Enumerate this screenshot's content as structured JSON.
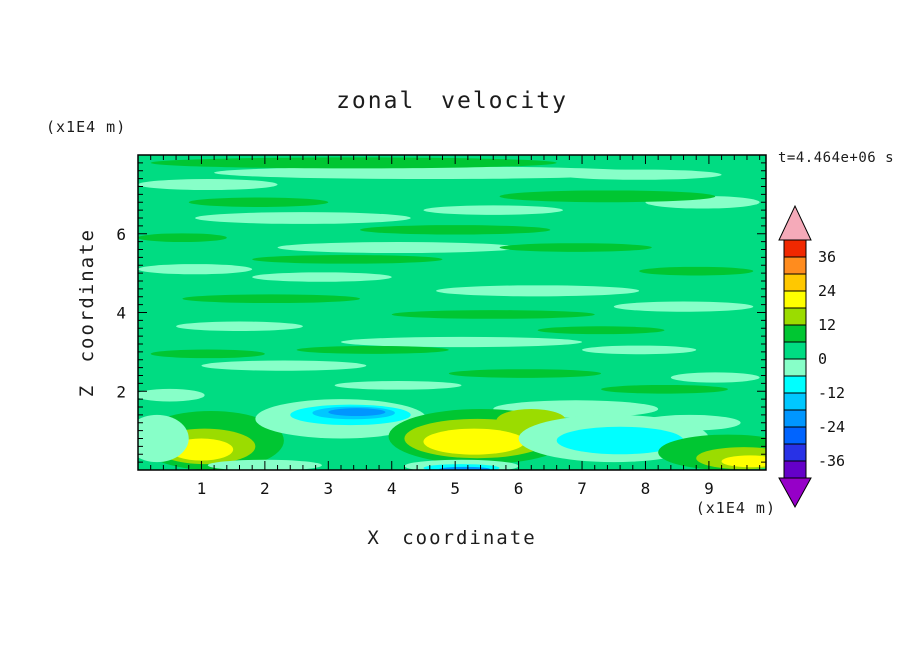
{
  "page": {
    "background": "#ffffff"
  },
  "chart_data": {
    "type": "heatmap",
    "title": "zonal velocity",
    "timestamp": "t=4.464e+06 s",
    "xlabel": "X coordinate",
    "ylabel": "Z coordinate",
    "x_unit_label": "(x1E4 m)",
    "z_unit_label": "(x1E4 m)",
    "xlim": [
      0,
      9.9
    ],
    "zlim": [
      0,
      8.0
    ],
    "x_major_ticks": [
      1,
      2,
      3,
      4,
      5,
      6,
      7,
      8,
      9
    ],
    "z_major_ticks": [
      2,
      4,
      6
    ],
    "minor_tick_step": 0.2,
    "grid": false,
    "frame_color": "#000000",
    "background_band": 0,
    "colorbar": {
      "labels": [
        36,
        24,
        12,
        0,
        -12,
        -24,
        -36
      ],
      "level_step": 6,
      "under_arrow_color": "#9600C8",
      "over_arrow_color": "#F5AAB9",
      "bands": [
        {
          "min": -42,
          "max": -36,
          "color": "#6400C8"
        },
        {
          "min": -36,
          "max": -30,
          "color": "#2832E6"
        },
        {
          "min": -30,
          "max": -24,
          "color": "#0064FF"
        },
        {
          "min": -24,
          "max": -18,
          "color": "#0096FF"
        },
        {
          "min": -18,
          "max": -12,
          "color": "#00C8FF"
        },
        {
          "min": -12,
          "max": -6,
          "color": "#00FFFF"
        },
        {
          "min": -6,
          "max": 0,
          "color": "#87FFC8"
        },
        {
          "min": 0,
          "max": 6,
          "color": "#00DC82"
        },
        {
          "min": 6,
          "max": 12,
          "color": "#00C632"
        },
        {
          "min": 12,
          "max": 18,
          "color": "#9BDC00"
        },
        {
          "min": 18,
          "max": 24,
          "color": "#FFFF00"
        },
        {
          "min": 24,
          "max": 30,
          "color": "#FFC800"
        },
        {
          "min": 30,
          "max": 36,
          "color": "#FF8C1E"
        },
        {
          "min": 36,
          "max": 42,
          "color": "#F02800"
        }
      ]
    },
    "features": [
      {
        "x": 4.6,
        "z": 7.55,
        "rx": 3.4,
        "rz": 0.16,
        "band": -6
      },
      {
        "x": 1.1,
        "z": 7.25,
        "rx": 1.1,
        "rz": 0.14,
        "band": -6
      },
      {
        "x": 7.9,
        "z": 7.5,
        "rx": 1.3,
        "rz": 0.13,
        "band": -6
      },
      {
        "x": 2.6,
        "z": 6.4,
        "rx": 1.7,
        "rz": 0.15,
        "band": -6
      },
      {
        "x": 5.6,
        "z": 6.6,
        "rx": 1.1,
        "rz": 0.12,
        "band": -6
      },
      {
        "x": 8.9,
        "z": 6.8,
        "rx": 0.9,
        "rz": 0.16,
        "band": -6
      },
      {
        "x": 4.1,
        "z": 5.65,
        "rx": 1.9,
        "rz": 0.14,
        "band": -6
      },
      {
        "x": 0.9,
        "z": 5.1,
        "rx": 0.9,
        "rz": 0.13,
        "band": -6
      },
      {
        "x": 2.9,
        "z": 4.9,
        "rx": 1.1,
        "rz": 0.12,
        "band": -6
      },
      {
        "x": 6.3,
        "z": 4.55,
        "rx": 1.6,
        "rz": 0.14,
        "band": -6
      },
      {
        "x": 8.6,
        "z": 4.15,
        "rx": 1.1,
        "rz": 0.13,
        "band": -6
      },
      {
        "x": 1.6,
        "z": 3.65,
        "rx": 1.0,
        "rz": 0.12,
        "band": -6
      },
      {
        "x": 5.1,
        "z": 3.25,
        "rx": 1.9,
        "rz": 0.13,
        "band": -6
      },
      {
        "x": 7.9,
        "z": 3.05,
        "rx": 0.9,
        "rz": 0.11,
        "band": -6
      },
      {
        "x": 2.3,
        "z": 2.65,
        "rx": 1.3,
        "rz": 0.13,
        "band": -6
      },
      {
        "x": 4.1,
        "z": 2.15,
        "rx": 1.0,
        "rz": 0.11,
        "band": -6
      },
      {
        "x": 9.1,
        "z": 2.35,
        "rx": 0.7,
        "rz": 0.13,
        "band": -6
      },
      {
        "x": 0.5,
        "z": 1.9,
        "rx": 0.55,
        "rz": 0.16,
        "band": -6
      },
      {
        "x": 6.9,
        "z": 1.55,
        "rx": 1.3,
        "rz": 0.22,
        "band": -6
      },
      {
        "x": 8.7,
        "z": 1.2,
        "rx": 0.8,
        "rz": 0.2,
        "band": -6
      },
      {
        "x": 3.4,
        "z": 7.8,
        "rx": 3.2,
        "rz": 0.14,
        "band": 6
      },
      {
        "x": 7.4,
        "z": 6.95,
        "rx": 1.7,
        "rz": 0.15,
        "band": 6
      },
      {
        "x": 1.9,
        "z": 6.8,
        "rx": 1.1,
        "rz": 0.12,
        "band": 6
      },
      {
        "x": 5.0,
        "z": 6.1,
        "rx": 1.5,
        "rz": 0.12,
        "band": 6
      },
      {
        "x": 0.7,
        "z": 5.9,
        "rx": 0.7,
        "rz": 0.11,
        "band": 6
      },
      {
        "x": 3.3,
        "z": 5.35,
        "rx": 1.5,
        "rz": 0.11,
        "band": 6
      },
      {
        "x": 6.9,
        "z": 5.65,
        "rx": 1.2,
        "rz": 0.11,
        "band": 6
      },
      {
        "x": 8.8,
        "z": 5.05,
        "rx": 0.9,
        "rz": 0.11,
        "band": 6
      },
      {
        "x": 2.1,
        "z": 4.35,
        "rx": 1.4,
        "rz": 0.11,
        "band": 6
      },
      {
        "x": 5.6,
        "z": 3.95,
        "rx": 1.6,
        "rz": 0.11,
        "band": 6
      },
      {
        "x": 7.3,
        "z": 3.55,
        "rx": 1.0,
        "rz": 0.1,
        "band": 6
      },
      {
        "x": 1.1,
        "z": 2.95,
        "rx": 0.9,
        "rz": 0.11,
        "band": 6
      },
      {
        "x": 3.7,
        "z": 3.05,
        "rx": 1.2,
        "rz": 0.1,
        "band": 6
      },
      {
        "x": 6.1,
        "z": 2.45,
        "rx": 1.2,
        "rz": 0.11,
        "band": 6
      },
      {
        "x": 8.3,
        "z": 2.05,
        "rx": 1.0,
        "rz": 0.11,
        "band": 6
      },
      {
        "x": 1.15,
        "z": 0.75,
        "rx": 1.15,
        "rz": 0.75,
        "band": 6
      },
      {
        "x": 1.05,
        "z": 0.6,
        "rx": 0.8,
        "rz": 0.45,
        "band": 12
      },
      {
        "x": 1.0,
        "z": 0.52,
        "rx": 0.5,
        "rz": 0.28,
        "band": 18
      },
      {
        "x": 0.3,
        "z": 0.8,
        "rx": 0.5,
        "rz": 0.6,
        "band": -6
      },
      {
        "x": 2.0,
        "z": 0.12,
        "rx": 0.9,
        "rz": 0.14,
        "band": -6
      },
      {
        "x": 3.2,
        "z": 1.3,
        "rx": 1.35,
        "rz": 0.5,
        "band": -6
      },
      {
        "x": 3.35,
        "z": 1.4,
        "rx": 0.95,
        "rz": 0.26,
        "band": -12
      },
      {
        "x": 3.4,
        "z": 1.45,
        "rx": 0.65,
        "rz": 0.16,
        "band": -18
      },
      {
        "x": 3.45,
        "z": 1.47,
        "rx": 0.45,
        "rz": 0.1,
        "band": -24
      },
      {
        "x": 5.4,
        "z": 0.85,
        "rx": 1.45,
        "rz": 0.7,
        "band": 6
      },
      {
        "x": 5.35,
        "z": 0.8,
        "rx": 1.15,
        "rz": 0.5,
        "band": 12
      },
      {
        "x": 5.3,
        "z": 0.72,
        "rx": 0.8,
        "rz": 0.33,
        "band": 18
      },
      {
        "x": 6.2,
        "z": 1.25,
        "rx": 0.55,
        "rz": 0.3,
        "band": 12
      },
      {
        "x": 5.1,
        "z": 0.1,
        "rx": 0.9,
        "rz": 0.16,
        "band": -6
      },
      {
        "x": 5.1,
        "z": 0.05,
        "rx": 0.6,
        "rz": 0.1,
        "band": -12
      },
      {
        "x": 5.15,
        "z": 0.02,
        "rx": 0.4,
        "rz": 0.06,
        "band": -24
      },
      {
        "x": 7.5,
        "z": 0.8,
        "rx": 1.5,
        "rz": 0.6,
        "band": -6
      },
      {
        "x": 7.6,
        "z": 0.75,
        "rx": 1.0,
        "rz": 0.35,
        "band": -12
      },
      {
        "x": 9.3,
        "z": 0.45,
        "rx": 1.1,
        "rz": 0.45,
        "band": 6
      },
      {
        "x": 9.55,
        "z": 0.3,
        "rx": 0.75,
        "rz": 0.28,
        "band": 12
      },
      {
        "x": 9.65,
        "z": 0.22,
        "rx": 0.45,
        "rz": 0.15,
        "band": 18
      }
    ]
  }
}
